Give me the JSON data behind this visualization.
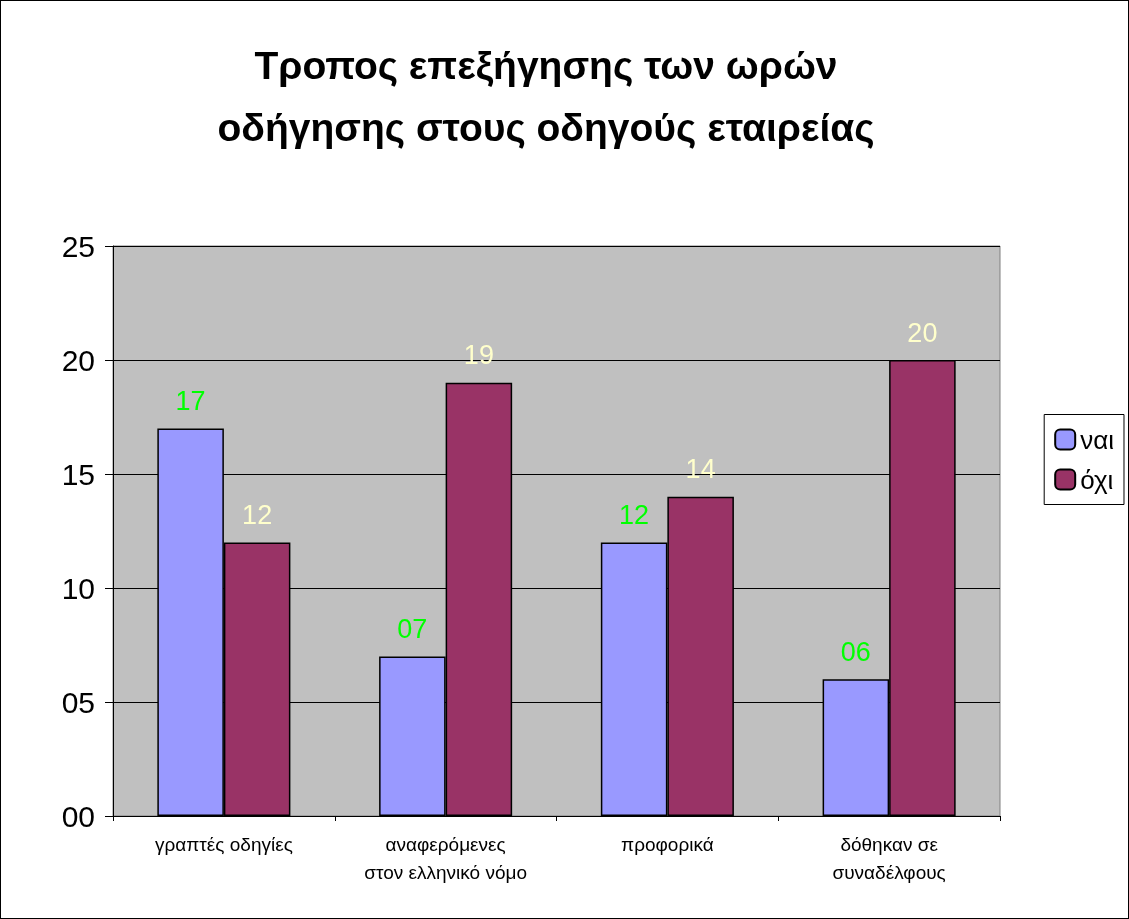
{
  "chart_data": {
    "type": "bar",
    "title": "Τροπος επεξήγησης των ωρών οδήγησης στους οδηγούς εταιρείας",
    "categories": [
      "γραπτές οδηγίες",
      "αναφερόμενες\nστον ελληνικό νόμο",
      "προφορικά",
      "δόθηκαν σε\nσυναδέλφους"
    ],
    "series": [
      {
        "name": "ναι",
        "color": "#9999ff",
        "values": [
          17,
          7,
          12,
          6
        ],
        "value_labels": [
          "17",
          "07",
          "12",
          "06"
        ]
      },
      {
        "name": "όχι",
        "color": "#993366",
        "values": [
          12,
          19,
          14,
          20
        ],
        "value_labels": [
          "12",
          "19",
          "14",
          "20"
        ]
      }
    ],
    "ylim": [
      0,
      25
    ],
    "yticks": [
      {
        "value": 0,
        "label": "00"
      },
      {
        "value": 5,
        "label": "05"
      },
      10,
      15,
      20,
      25
    ],
    "grid": "y",
    "legend": "right"
  }
}
